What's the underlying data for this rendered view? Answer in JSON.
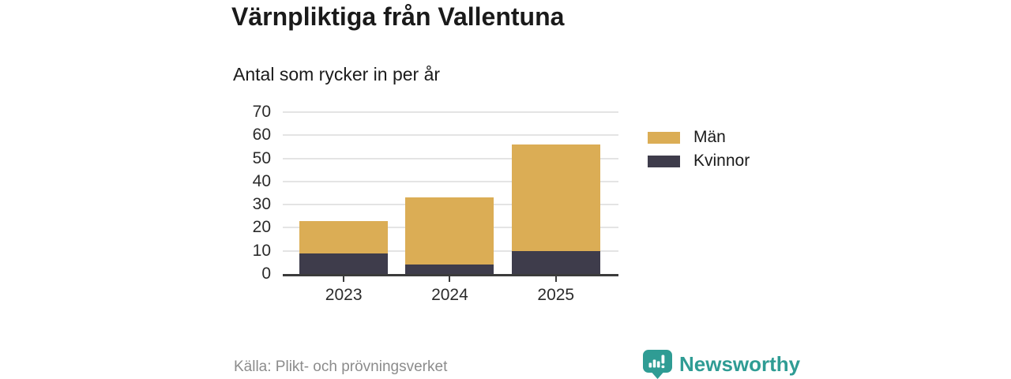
{
  "header": {
    "title": "Värnpliktiga från Vallentuna",
    "subtitle": "Antal som rycker in per år"
  },
  "chart_data": {
    "type": "bar",
    "stacked": true,
    "title": "Värnpliktiga från Vallentuna",
    "subtitle": "Antal som rycker in per år",
    "categories": [
      "2023",
      "2024",
      "2025"
    ],
    "series": [
      {
        "name": "Män",
        "color": "#dbad55",
        "values": [
          14,
          29,
          46
        ]
      },
      {
        "name": "Kvinnor",
        "color": "#3e3c4b",
        "values": [
          9,
          4,
          10
        ]
      }
    ],
    "stack_totals": [
      23,
      33,
      56
    ],
    "ylim": [
      0,
      70
    ],
    "yticks": [
      0,
      10,
      20,
      30,
      40,
      50,
      60,
      70
    ],
    "xlabel": "",
    "ylabel": "",
    "grid": true,
    "legend_position": "right"
  },
  "footer": {
    "source": "Källa: Plikt- och prövningsverket",
    "brand_name": "Newsworthy"
  },
  "colors": {
    "background": "#ffffff",
    "title_text": "#1a1a1a",
    "axis_text": "#2b2b2b",
    "axis_line": "#3b3b3b",
    "gridline": "#e4e4e4",
    "source_text": "#8c8c8c",
    "brand_teal": "#2f9c94",
    "men_bar": "#dbad55",
    "women_bar": "#3e3c4b"
  }
}
